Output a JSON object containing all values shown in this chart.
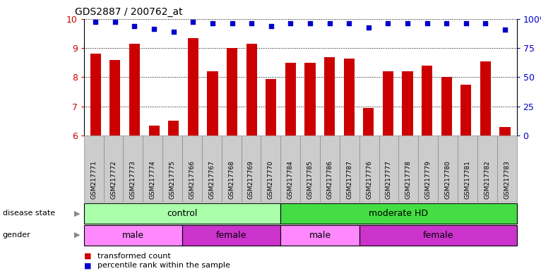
{
  "title": "GDS2887 / 200762_at",
  "samples": [
    "GSM217771",
    "GSM217772",
    "GSM217773",
    "GSM217774",
    "GSM217775",
    "GSM217766",
    "GSM217767",
    "GSM217768",
    "GSM217769",
    "GSM217770",
    "GSM217784",
    "GSM217785",
    "GSM217786",
    "GSM217787",
    "GSM217776",
    "GSM217777",
    "GSM217778",
    "GSM217779",
    "GSM217780",
    "GSM217781",
    "GSM217782",
    "GSM217783"
  ],
  "bar_values": [
    8.8,
    8.6,
    9.15,
    6.35,
    6.5,
    9.35,
    8.2,
    9.0,
    9.15,
    7.95,
    8.5,
    8.5,
    8.7,
    8.65,
    6.95,
    8.2,
    8.2,
    8.4,
    8.0,
    7.75,
    8.55,
    6.3
  ],
  "dot_values": [
    9.9,
    9.9,
    9.75,
    9.65,
    9.55,
    9.9,
    9.85,
    9.85,
    9.85,
    9.75,
    9.85,
    9.85,
    9.85,
    9.85,
    9.7,
    9.85,
    9.85,
    9.85,
    9.85,
    9.85,
    9.85,
    9.63
  ],
  "ylim": [
    6,
    10
  ],
  "yticks_left": [
    6,
    7,
    8,
    9,
    10
  ],
  "bar_color": "#cc0000",
  "dot_color": "#0000cc",
  "disease_state_groups": [
    {
      "label": "control",
      "start": 0,
      "end": 9,
      "color": "#aaffaa"
    },
    {
      "label": "moderate HD",
      "start": 10,
      "end": 21,
      "color": "#44dd44"
    }
  ],
  "gender_groups": [
    {
      "label": "male",
      "start": 0,
      "end": 4,
      "color": "#ff88ff"
    },
    {
      "label": "female",
      "start": 5,
      "end": 9,
      "color": "#cc33cc"
    },
    {
      "label": "male",
      "start": 10,
      "end": 13,
      "color": "#ff88ff"
    },
    {
      "label": "female",
      "start": 14,
      "end": 21,
      "color": "#cc33cc"
    }
  ],
  "legend_items": [
    {
      "label": "transformed count",
      "color": "#cc0000"
    },
    {
      "label": "percentile rank within the sample",
      "color": "#0000cc"
    }
  ],
  "bar_color_right": "#0000cc",
  "bar_width": 0.55,
  "fig_width": 7.66,
  "fig_height": 3.84,
  "dpi": 100
}
